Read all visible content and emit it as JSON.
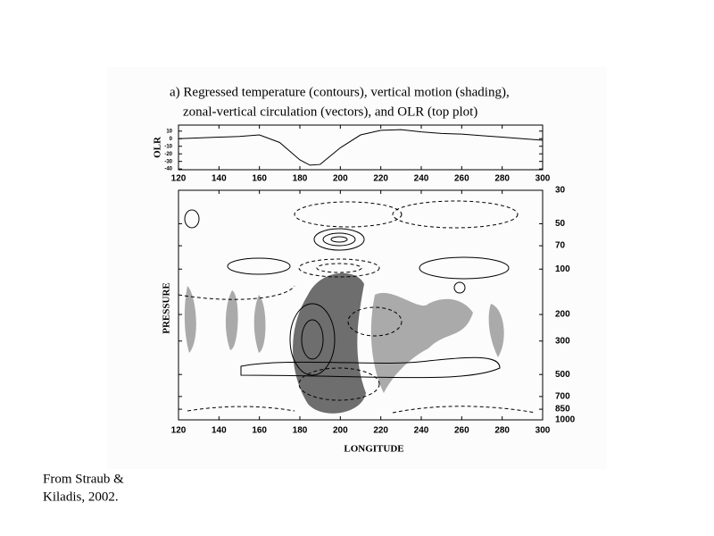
{
  "caption": [
    "From Straub &",
    "Kiladis, 2002."
  ],
  "chart_data": [
    {
      "type": "line",
      "title": [
        "a) Regressed temperature (contours), vertical motion (shading),",
        "zonal-vertical circulation (vectors), and OLR (top plot)"
      ],
      "y_label": "OLR",
      "x": [
        120,
        130,
        140,
        150,
        160,
        170,
        180,
        185,
        190,
        200,
        210,
        220,
        230,
        240,
        250,
        260,
        270,
        280,
        290,
        300
      ],
      "values": [
        0,
        1,
        2,
        3,
        5,
        -5,
        -28,
        -35,
        -34,
        -12,
        5,
        11,
        12,
        9,
        7,
        6,
        4,
        2,
        0,
        -2
      ],
      "color": "#000000",
      "xlim": [
        120,
        300
      ],
      "xticks": [
        120,
        140,
        160,
        180,
        200,
        220,
        240,
        260,
        280,
        300
      ],
      "ylim": [
        -41,
        18
      ],
      "yticks": [
        10,
        0,
        -10,
        -20,
        -30,
        -40
      ]
    },
    {
      "type": "contour",
      "x_label": "LONGITUDE",
      "y_label": "PRESSURE",
      "xlim": [
        120,
        300
      ],
      "xticks": [
        120,
        140,
        160,
        180,
        200,
        220,
        240,
        260,
        280,
        300
      ],
      "ylim": [
        1000,
        30
      ],
      "yticks": [
        30,
        50,
        70,
        100,
        200,
        300,
        500,
        700,
        850,
        1000
      ],
      "yscale": "log",
      "y_axis_side": "right"
    }
  ]
}
